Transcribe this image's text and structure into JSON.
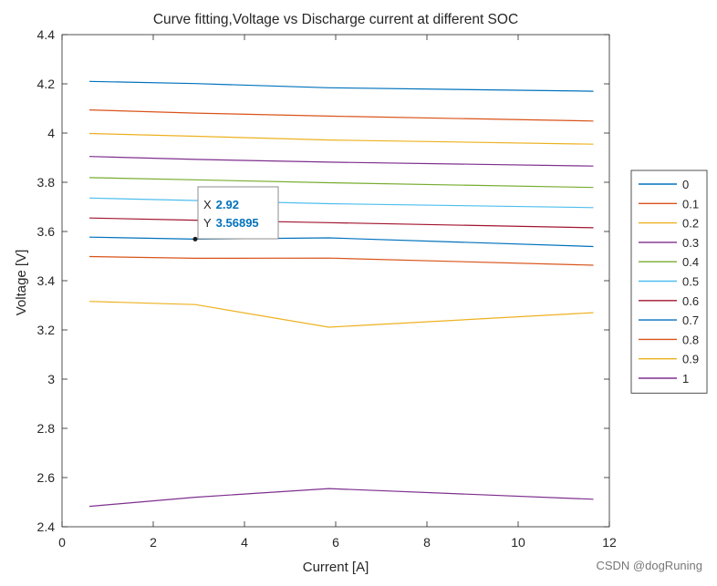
{
  "chart_data": {
    "type": "line",
    "title": "Curve fitting,Voltage vs Discharge current at different SOC",
    "xlabel": "Current [A]",
    "ylabel": "Voltage [V]",
    "xlim": [
      0,
      12
    ],
    "ylim": [
      2.4,
      4.4
    ],
    "x_ticks": [
      0,
      2,
      4,
      6,
      8,
      10,
      12
    ],
    "y_ticks": [
      2.4,
      2.6,
      2.8,
      3,
      3.2,
      3.4,
      3.6,
      3.8,
      4,
      4.2,
      4.4
    ],
    "x_tick_labels": [
      "0",
      "2",
      "4",
      "6",
      "8",
      "10",
      "12"
    ],
    "y_tick_labels": [
      "2.4",
      "2.6",
      "2.8",
      "3",
      "3.2",
      "3.4",
      "3.6",
      "3.8",
      "4",
      "4.2",
      "4.4"
    ],
    "grid": false,
    "legend_placement": "outside-right",
    "x": [
      0.6,
      2.92,
      5.85,
      11.65
    ],
    "series": [
      {
        "name": "0",
        "color": "#0072BD",
        "values": [
          4.21,
          4.201,
          4.184,
          4.17
        ]
      },
      {
        "name": "0.1",
        "color": "#D95319",
        "values": [
          4.094,
          4.081,
          4.069,
          4.049
        ]
      },
      {
        "name": "0.2",
        "color": "#EDB120",
        "values": [
          3.998,
          3.987,
          3.972,
          3.955
        ]
      },
      {
        "name": "0.3",
        "color": "#7E2F8E",
        "values": [
          3.905,
          3.893,
          3.882,
          3.866
        ]
      },
      {
        "name": "0.4",
        "color": "#77AC30",
        "values": [
          3.819,
          3.81,
          3.798,
          3.779
        ]
      },
      {
        "name": "0.5",
        "color": "#4DBEEE",
        "values": [
          3.736,
          3.726,
          3.713,
          3.697
        ]
      },
      {
        "name": "0.6",
        "color": "#A2142F",
        "values": [
          3.655,
          3.646,
          3.636,
          3.615
        ]
      },
      {
        "name": "0.7",
        "color": "#0072BD",
        "values": [
          3.577,
          3.569,
          3.574,
          3.539
        ]
      },
      {
        "name": "0.8",
        "color": "#D95319",
        "values": [
          3.498,
          3.491,
          3.492,
          3.463
        ]
      },
      {
        "name": "0.9",
        "color": "#EDB120",
        "values": [
          3.316,
          3.303,
          3.211,
          3.27
        ]
      },
      {
        "name": "1",
        "color": "#7E2F8E",
        "values": [
          2.483,
          2.52,
          2.555,
          2.512
        ]
      }
    ],
    "datatip": {
      "x_label": "X",
      "x_value": "2.92",
      "y_label": "Y",
      "y_value": "3.56895",
      "x": 2.92,
      "y": 3.56895,
      "value_color": "#0072BD"
    }
  },
  "watermark": "CSDN @dogRuning"
}
